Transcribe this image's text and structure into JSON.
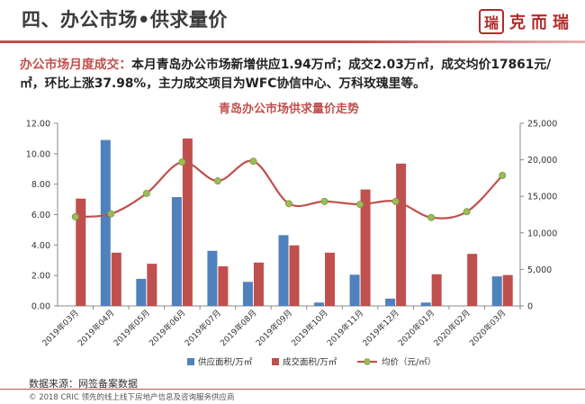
{
  "header": {
    "title": "四、办公市场•供求量价",
    "logo_text": "克而瑞",
    "logo_seal": "瑞"
  },
  "summary": {
    "highlight": "办公市场月度成交：",
    "body": "本月青岛办公市场新增供应1.94万㎡；成交2.03万㎡，成交均价17861元/㎡，环比上涨37.98%，主力成交项目为WFC协信中心、万科玫瑰里等。"
  },
  "source_note": "数据来源：网签备案数据",
  "footer_note": "© 2018 CRIC 领先的线上线下房地产信息及咨询服务供应商",
  "colors": {
    "supply": "#4f81bd",
    "deal": "#c0504d",
    "price_line": "#c0504d",
    "price_marker": "#9bbb59",
    "accent": "#c0504d"
  },
  "chart_data": {
    "type": "bar",
    "title": "青岛办公市场供求量价走势",
    "categories": [
      "2019年03月",
      "2019年04月",
      "2019年05月",
      "2019年06月",
      "2019年07月",
      "2019年08月",
      "2019年09月",
      "2019年10月",
      "2019年11月",
      "2019年12月",
      "2020年01月",
      "2020年02月",
      "2020年03月"
    ],
    "series": [
      {
        "name": "供应面积/万㎡",
        "kind": "bar",
        "axis": "left",
        "values": [
          0,
          10.9,
          1.78,
          7.15,
          3.62,
          1.58,
          4.65,
          0.22,
          2.05,
          0.48,
          0.22,
          0,
          1.94
        ]
      },
      {
        "name": "成交面积/万㎡",
        "kind": "bar",
        "axis": "left",
        "values": [
          7.05,
          3.5,
          2.77,
          11.0,
          2.6,
          2.85,
          3.98,
          3.5,
          7.65,
          9.35,
          2.08,
          3.42,
          2.03
        ]
      },
      {
        "name": "均价（元/㎡）",
        "kind": "line",
        "axis": "right",
        "values": [
          12200,
          12600,
          15400,
          19700,
          17100,
          19800,
          14000,
          14300,
          13900,
          14300,
          12100,
          12900,
          17861
        ]
      }
    ],
    "ylim_left": [
      0,
      12
    ],
    "yticks_left": [
      "0.00",
      "2.00",
      "4.00",
      "6.00",
      "8.00",
      "10.00",
      "12.00"
    ],
    "ylim_right": [
      0,
      25000
    ],
    "yticks_right": [
      "0",
      "5,000",
      "10,000",
      "15,000",
      "20,000",
      "25,000"
    ],
    "legend_position": "bottom",
    "grid": false
  }
}
